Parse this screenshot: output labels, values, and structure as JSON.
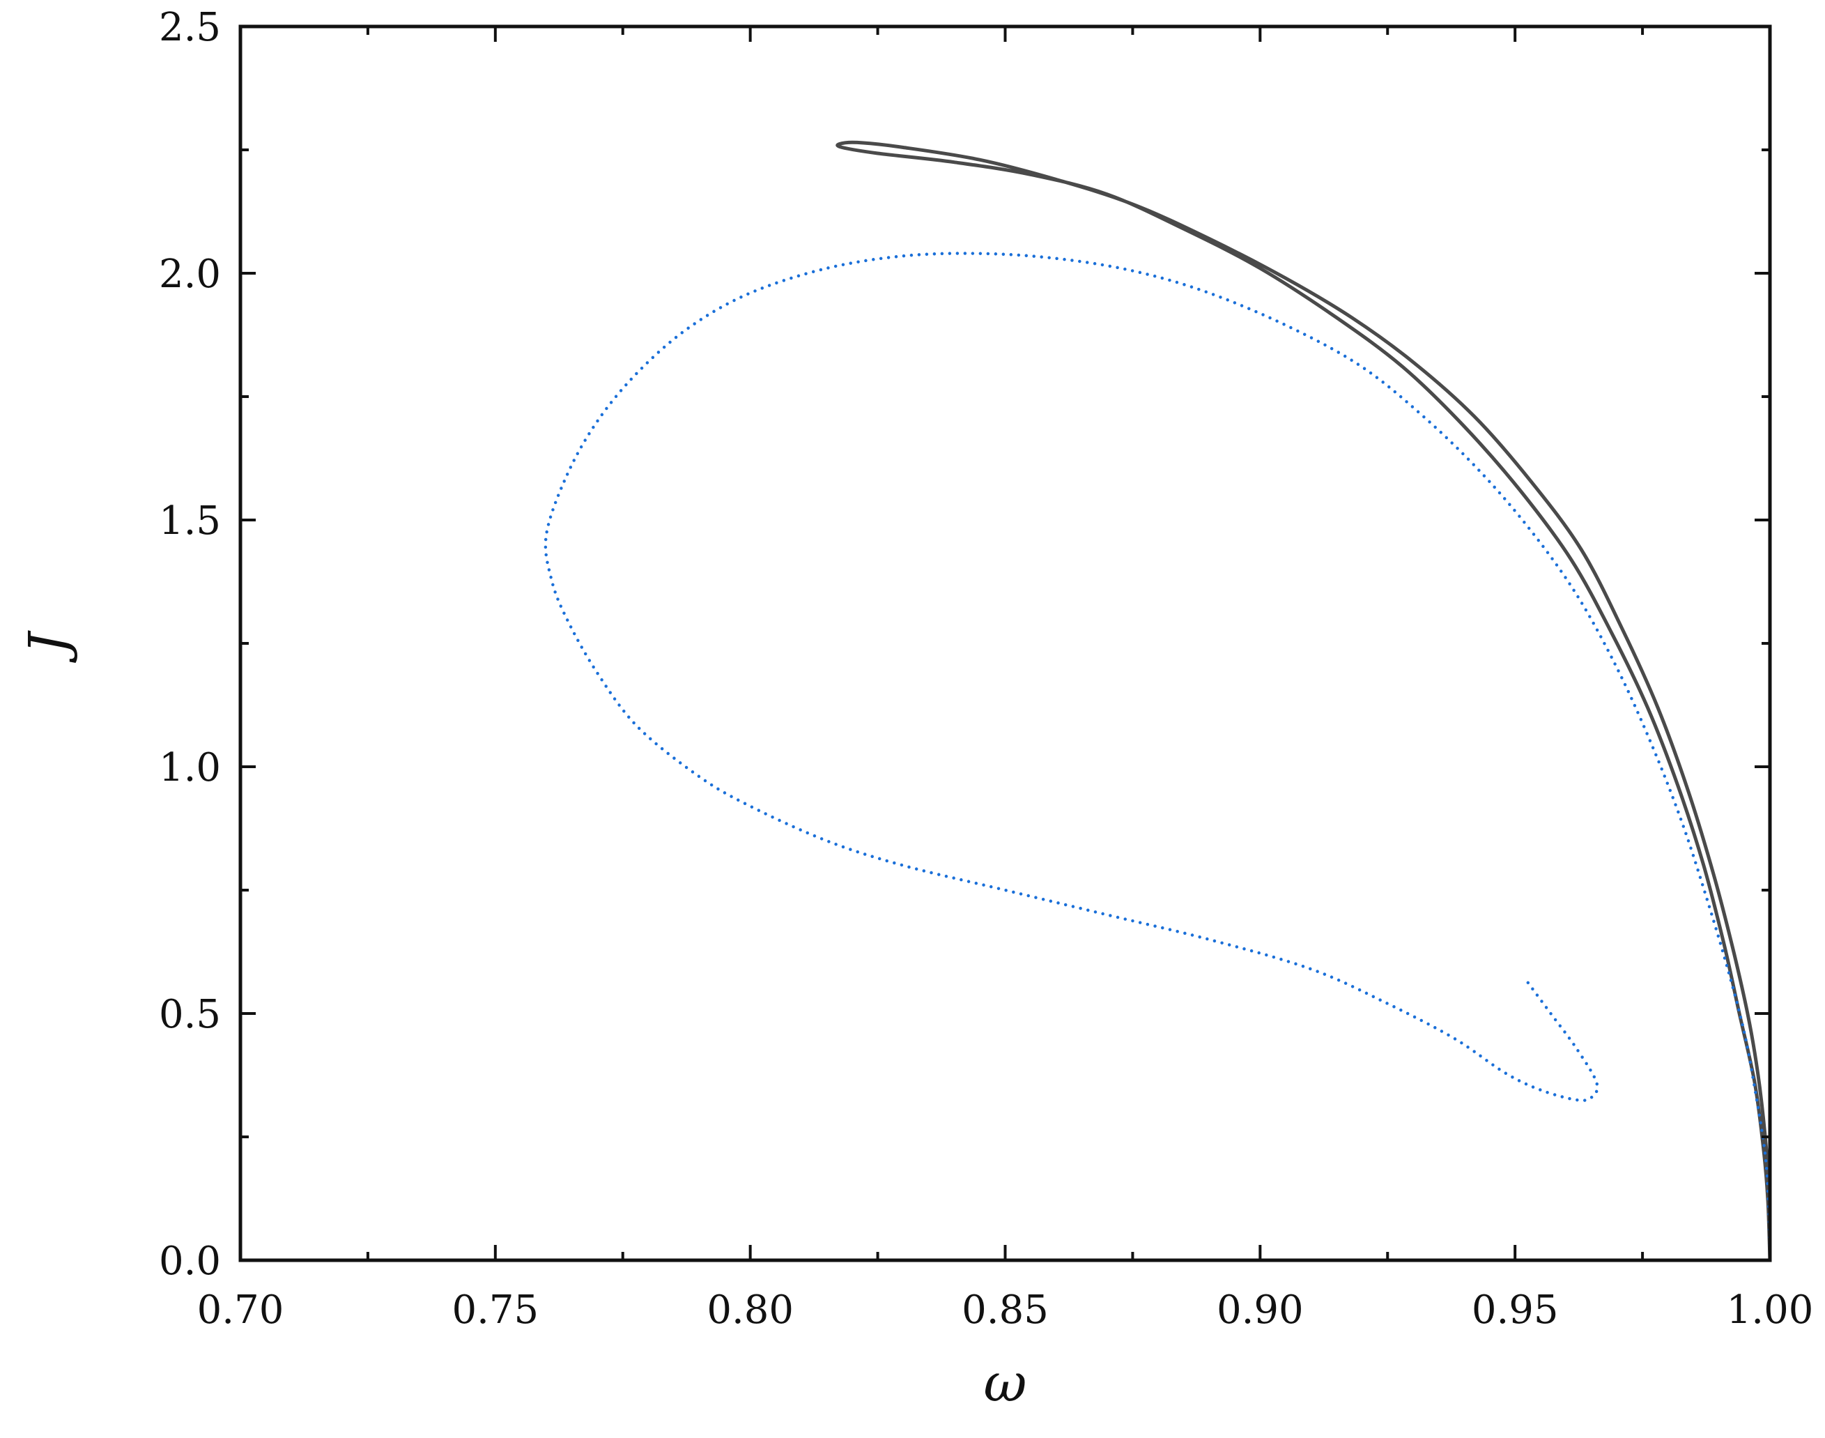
{
  "chart_data": {
    "type": "line",
    "title": "",
    "xlabel": "ω",
    "ylabel": "J",
    "xlim": [
      0.7,
      1.0
    ],
    "ylim": [
      0.0,
      2.5
    ],
    "xticks": [
      "0.70",
      "0.75",
      "0.80",
      "0.85",
      "0.90",
      "0.95",
      "1.00"
    ],
    "xtick_values": [
      0.7,
      0.75,
      0.8,
      0.85,
      0.9,
      0.95,
      1.0
    ],
    "xminor_values": [
      0.725,
      0.775,
      0.825,
      0.875,
      0.925,
      0.975
    ],
    "yticks": [
      "0.0",
      "0.5",
      "1.0",
      "1.5",
      "2.0",
      "2.5"
    ],
    "ytick_values": [
      0.0,
      0.5,
      1.0,
      1.5,
      2.0,
      2.5
    ],
    "yminor_values": [
      0.25,
      0.75,
      1.25,
      1.75,
      2.25
    ],
    "grid": false,
    "legend": "none",
    "series": [
      {
        "style": "solid",
        "color": "#4a4a4a",
        "points": [
          [
            1.0,
            0.0
          ],
          [
            0.9998,
            0.12
          ],
          [
            0.9995,
            0.2
          ],
          [
            0.998,
            0.35
          ],
          [
            0.996,
            0.48
          ],
          [
            0.993,
            0.62
          ],
          [
            0.989,
            0.78
          ],
          [
            0.984,
            0.95
          ],
          [
            0.978,
            1.12
          ],
          [
            0.971,
            1.28
          ],
          [
            0.963,
            1.44
          ],
          [
            0.953,
            1.58
          ],
          [
            0.942,
            1.71
          ],
          [
            0.93,
            1.82
          ],
          [
            0.918,
            1.91
          ],
          [
            0.905,
            1.99
          ],
          [
            0.89,
            2.07
          ],
          [
            0.875,
            2.14
          ],
          [
            0.86,
            2.19
          ],
          [
            0.845,
            2.23
          ],
          [
            0.83,
            2.255
          ],
          [
            0.821,
            2.265
          ],
          [
            0.8175,
            2.262
          ],
          [
            0.818,
            2.255
          ],
          [
            0.825,
            2.243
          ],
          [
            0.84,
            2.225
          ],
          [
            0.855,
            2.2
          ],
          [
            0.87,
            2.16
          ],
          [
            0.885,
            2.09
          ],
          [
            0.9,
            2.01
          ],
          [
            0.915,
            1.91
          ],
          [
            0.928,
            1.81
          ],
          [
            0.94,
            1.69
          ],
          [
            0.951,
            1.56
          ],
          [
            0.961,
            1.42
          ],
          [
            0.969,
            1.27
          ],
          [
            0.976,
            1.12
          ],
          [
            0.982,
            0.96
          ],
          [
            0.987,
            0.8
          ],
          [
            0.991,
            0.64
          ],
          [
            0.994,
            0.5
          ],
          [
            0.997,
            0.36
          ],
          [
            0.9988,
            0.22
          ],
          [
            0.9996,
            0.12
          ],
          [
            1.0,
            0.0
          ]
        ]
      },
      {
        "style": "dotted",
        "color": "#1a6fd8",
        "points": [
          [
            1.0,
            0.0
          ],
          [
            0.9997,
            0.12
          ],
          [
            0.999,
            0.22
          ],
          [
            0.997,
            0.35
          ],
          [
            0.995,
            0.46
          ],
          [
            0.992,
            0.58
          ],
          [
            0.988,
            0.72
          ],
          [
            0.983,
            0.88
          ],
          [
            0.977,
            1.04
          ],
          [
            0.97,
            1.2
          ],
          [
            0.962,
            1.35
          ],
          [
            0.953,
            1.48
          ],
          [
            0.943,
            1.6
          ],
          [
            0.932,
            1.71
          ],
          [
            0.92,
            1.81
          ],
          [
            0.906,
            1.89
          ],
          [
            0.89,
            1.96
          ],
          [
            0.875,
            2.005
          ],
          [
            0.86,
            2.03
          ],
          [
            0.845,
            2.04
          ],
          [
            0.83,
            2.035
          ],
          [
            0.815,
            2.01
          ],
          [
            0.8,
            1.96
          ],
          [
            0.788,
            1.89
          ],
          [
            0.778,
            1.8
          ],
          [
            0.77,
            1.7
          ],
          [
            0.764,
            1.59
          ],
          [
            0.76,
            1.47
          ],
          [
            0.761,
            1.38
          ],
          [
            0.764,
            1.3
          ],
          [
            0.77,
            1.19
          ],
          [
            0.778,
            1.08
          ],
          [
            0.79,
            0.98
          ],
          [
            0.8,
            0.92
          ],
          [
            0.815,
            0.85
          ],
          [
            0.83,
            0.8
          ],
          [
            0.85,
            0.75
          ],
          [
            0.87,
            0.7
          ],
          [
            0.89,
            0.65
          ],
          [
            0.91,
            0.59
          ],
          [
            0.925,
            0.52
          ],
          [
            0.938,
            0.45
          ],
          [
            0.948,
            0.38
          ],
          [
            0.955,
            0.345
          ],
          [
            0.962,
            0.325
          ],
          [
            0.965,
            0.33
          ],
          [
            0.966,
            0.36
          ],
          [
            0.962,
            0.43
          ],
          [
            0.957,
            0.5
          ],
          [
            0.952,
            0.57
          ]
        ]
      }
    ]
  }
}
